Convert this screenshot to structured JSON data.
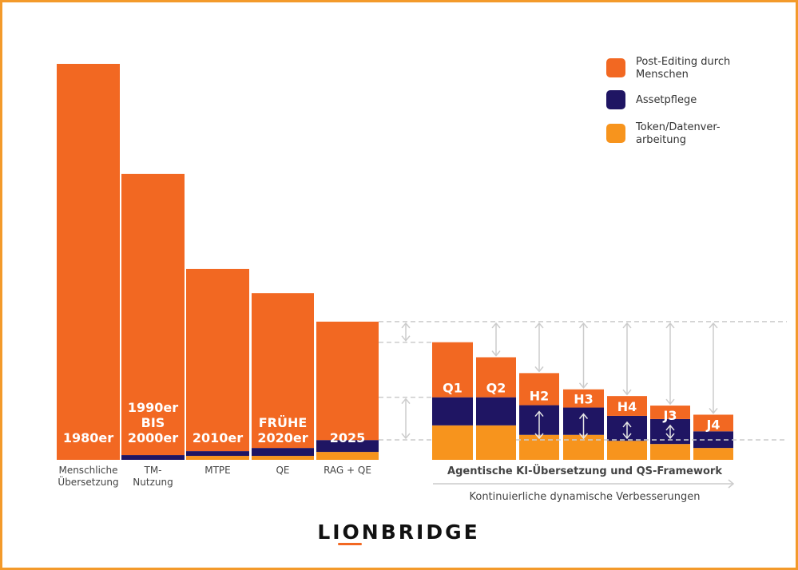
{
  "chart_data": {
    "type": "bar",
    "stacked": true,
    "title": "",
    "xlabel": "",
    "ylabel": "",
    "grid": false,
    "legend_placement": "top-right",
    "colors": {
      "post_editing": "#f26822",
      "asset": "#1f1563",
      "token": "#f7941d",
      "guide": "#cccccc"
    },
    "legend": [
      "Post-Editing durch Menschen",
      "Assetpflege",
      "Token/Datenver-arbeitung"
    ],
    "legend_lines": [
      [
        "Post-Editing durch",
        "Menschen"
      ],
      [
        "Assetpflege"
      ],
      [
        "Token/Datenver-",
        "arbeitung"
      ]
    ],
    "categories": [
      {
        "bar_label": [
          "1980er"
        ],
        "axis_label": [
          "Menschliche",
          "Übersetzung"
        ]
      },
      {
        "bar_label": [
          "1990er",
          "BIS",
          "2000er"
        ],
        "axis_label": [
          "TM-",
          "Nutzung"
        ]
      },
      {
        "bar_label": [
          "2010er"
        ],
        "axis_label": [
          "MTPE"
        ]
      },
      {
        "bar_label": [
          "FRÜHE",
          "2020er"
        ],
        "axis_label": [
          "QE"
        ]
      },
      {
        "bar_label": [
          "2025"
        ],
        "axis_label": [
          "RAG + QE"
        ]
      },
      {
        "bar_label": [
          "Q1"
        ],
        "axis_label": []
      },
      {
        "bar_label": [
          "Q2"
        ],
        "axis_label": []
      },
      {
        "bar_label": [
          "H2"
        ],
        "axis_label": []
      },
      {
        "bar_label": [
          "H3"
        ],
        "axis_label": []
      },
      {
        "bar_label": [
          "H4"
        ],
        "axis_label": []
      },
      {
        "bar_label": [
          "J3"
        ],
        "axis_label": []
      },
      {
        "bar_label": [
          "J4"
        ],
        "axis_label": []
      }
    ],
    "series": [
      {
        "name": "Token/Datenver-arbeitung",
        "values": [
          0,
          0,
          1.0,
          1.0,
          2.0,
          8.7,
          8.7,
          6.3,
          6.3,
          4.8,
          4.0,
          3.0
        ]
      },
      {
        "name": "Assetpflege",
        "values": [
          0,
          1.2,
          1.2,
          2.0,
          3.0,
          7.1,
          7.1,
          7.5,
          6.9,
          6.3,
          6.3,
          4.2
        ]
      },
      {
        "name": "Post-Editing durch Menschen",
        "values": [
          100,
          71.0,
          46.0,
          39.1,
          29.9,
          13.9,
          10.1,
          8.1,
          4.6,
          5.0,
          3.4,
          4.2
        ]
      }
    ],
    "group_label": "Agentische KI-Übersetzung und QS-Framework",
    "arrow_label": "Kontinuierliche dynamische Verbesserungen"
  },
  "logo": "LIONBRIDGE"
}
